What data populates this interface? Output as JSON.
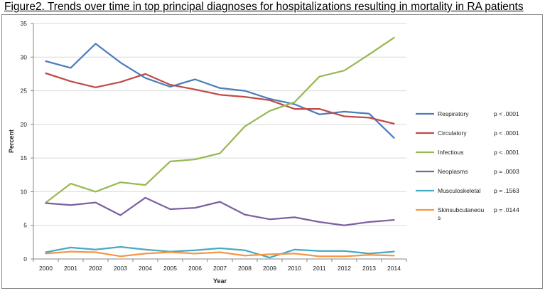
{
  "title": "Figure2. Trends over time in top principal diagnoses for hospitalizations  resulting in mortality in RA patients",
  "chart_data": {
    "type": "line",
    "xlabel": "Year",
    "ylabel": "Percent",
    "ylim": [
      0,
      35
    ],
    "yticks": [
      0,
      5,
      10,
      15,
      20,
      25,
      30,
      35
    ],
    "x": [
      "2000",
      "2001",
      "2002",
      "2003",
      "2004",
      "2005",
      "2006",
      "2007",
      "2008",
      "2009",
      "2010",
      "2011",
      "2012",
      "2013",
      "2014"
    ],
    "series": [
      {
        "name": "Respiratory",
        "pvalue": "p < .0001",
        "color": "#4a7ebb",
        "values": [
          29.4,
          28.4,
          32.0,
          29.2,
          26.9,
          25.6,
          26.7,
          25.4,
          25.0,
          23.8,
          23.0,
          21.5,
          21.9,
          21.6,
          18.0
        ]
      },
      {
        "name": "Circulatory",
        "pvalue": "p < .0001",
        "color": "#be4b48",
        "values": [
          27.6,
          26.4,
          25.5,
          26.3,
          27.5,
          25.9,
          25.2,
          24.4,
          24.1,
          23.6,
          22.3,
          22.3,
          21.2,
          21.0,
          20.1
        ]
      },
      {
        "name": "Infectious",
        "pvalue": "p < .0001",
        "color": "#98b954",
        "values": [
          8.4,
          11.2,
          10.0,
          11.4,
          11.0,
          14.5,
          14.8,
          15.7,
          19.7,
          22.0,
          23.3,
          27.1,
          28.0,
          30.4,
          32.9
        ]
      },
      {
        "name": "Neoplasms",
        "pvalue": "p = .0003",
        "color": "#7d60a0",
        "values": [
          8.3,
          8.0,
          8.4,
          6.5,
          9.1,
          7.4,
          7.6,
          8.5,
          6.6,
          5.9,
          6.2,
          5.5,
          5.0,
          5.5,
          5.8
        ]
      },
      {
        "name": "Musculoskeletal",
        "pvalue": "p = .1563",
        "color": "#46aac5",
        "values": [
          1.0,
          1.7,
          1.4,
          1.8,
          1.4,
          1.1,
          1.3,
          1.6,
          1.3,
          0.2,
          1.4,
          1.2,
          1.2,
          0.8,
          1.1
        ]
      },
      {
        "name": "Skinsubcutaneous",
        "legend_lines": [
          "Skinsubcutaneou",
          "s"
        ],
        "pvalue": "p = .0144",
        "color": "#f79646",
        "values": [
          0.8,
          1.1,
          1.0,
          0.4,
          0.8,
          1.0,
          0.8,
          1.0,
          0.5,
          0.7,
          0.8,
          0.4,
          0.4,
          0.6,
          0.5
        ]
      }
    ]
  }
}
